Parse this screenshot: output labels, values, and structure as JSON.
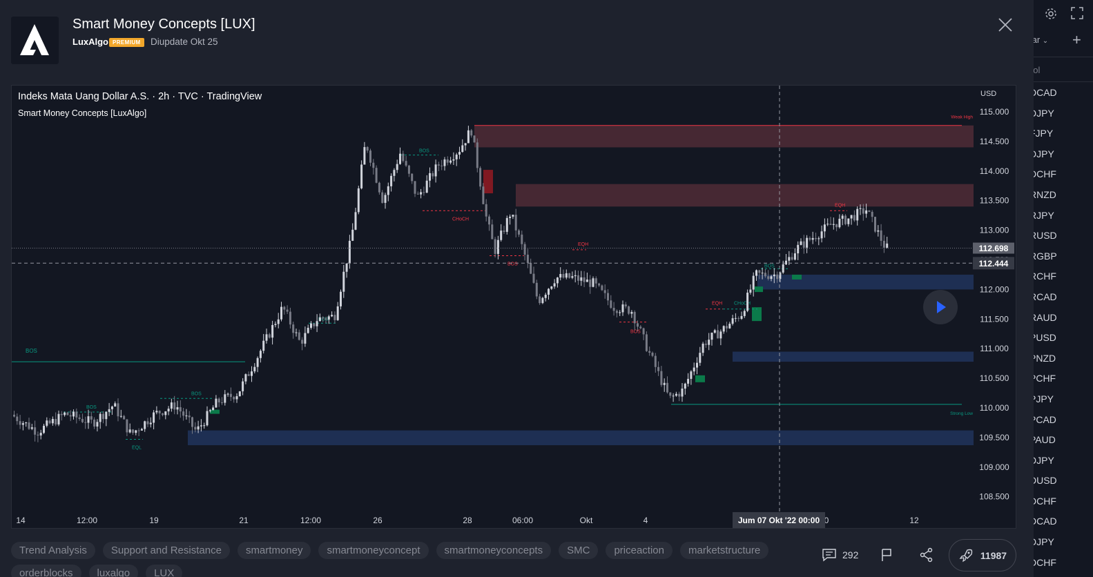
{
  "header": {
    "script_title": "Smart Money Concepts [LUX]",
    "author": "LuxAlgo",
    "badge": "PREMIUM",
    "updated": "Diupdate Okt 25"
  },
  "chart": {
    "title": "Indeks Mata Uang Dollar A.S. · 2h · TVC · TradingView",
    "indicator": "Smart Money Concepts [LuxAlgo]",
    "currency": "USD",
    "price_ticks": [
      "115.000",
      "114.500",
      "114.000",
      "113.500",
      "113.000",
      "112.500",
      "112.000",
      "111.500",
      "111.000",
      "110.500",
      "110.000",
      "109.500",
      "109.000",
      "108.500"
    ],
    "time_ticks": [
      "14",
      "12:00",
      "19",
      "21",
      "12:00",
      "26",
      "28",
      "06:00",
      "Okt",
      "4",
      "0",
      "12"
    ],
    "last_price": "112.698",
    "crosshair_price": "112.444",
    "crosshair_time": "Jum 07 Okt '22   00:00",
    "labels": {
      "weak_high": "Weak High",
      "strong_low": "Strong Low",
      "bos": "BOS",
      "choch": "CHoCH",
      "eqh": "EQH",
      "eql": "EQL"
    },
    "colors": {
      "up": "#d1d4dc",
      "down": "#787b86",
      "bear": "#f23645",
      "bull": "#089981",
      "supply_zone": "#4c2a35",
      "demand_zone": "#1e2f53"
    }
  },
  "footer": {
    "tags": [
      "Trend Analysis",
      "Support and Resistance",
      "smartmoney",
      "smartmoneyconcept",
      "smartmoneyconcepts",
      "SMC",
      "priceaction",
      "marketstructure",
      "orderblocks",
      "luxalgo",
      "LUX"
    ],
    "comments": "292",
    "boosts": "11987"
  },
  "watchlist": {
    "header": "tar",
    "column": "bol",
    "items": [
      "DCAD",
      "DJPY",
      "FJPY",
      "DJPY",
      "DCHF",
      "RNZD",
      "RJPY",
      "RUSD",
      "RGBP",
      "RCHF",
      "RCAD",
      "RAUD",
      "PUSD",
      "PNZD",
      "PCHF",
      "PJPY",
      "PCAD",
      "PAUD",
      "DJPY",
      "DUSD",
      "DCHF",
      "DCAD",
      "DJPY",
      "DCHF"
    ]
  }
}
